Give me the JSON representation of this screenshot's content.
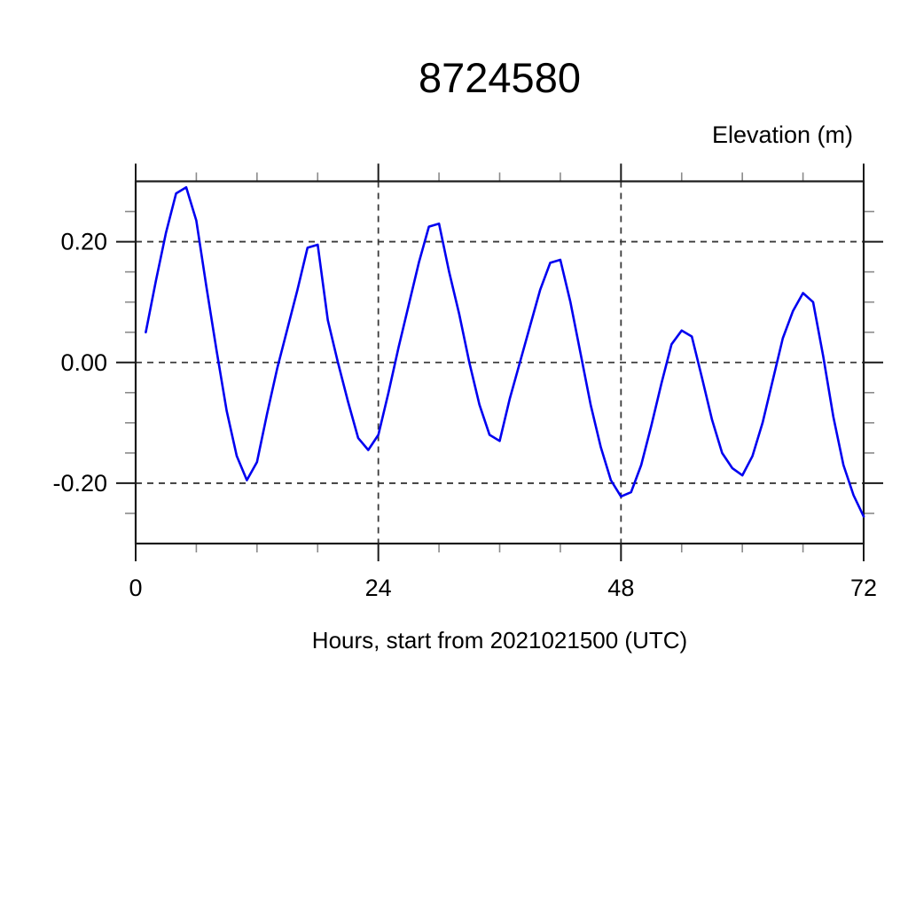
{
  "chart_data": {
    "type": "line",
    "title": "8724580",
    "ylabel": "Elevation (m)",
    "xlabel": "Hours, start from 2021021500 (UTC)",
    "xlim": [
      0,
      72
    ],
    "ylim": [
      -0.3,
      0.3
    ],
    "x_major_ticks": [
      0,
      24,
      48,
      72
    ],
    "x_tick_labels": [
      "0",
      "24",
      "48",
      "72"
    ],
    "x_minor_step": 6,
    "y_major_ticks": [
      0.2,
      0.0,
      -0.2
    ],
    "y_tick_labels": [
      "0.20",
      "0.00",
      "-0.20"
    ],
    "y_minor_step": 0.05,
    "grid": "dashed at major ticks",
    "legend_position": "none",
    "line_color": "#0000f0",
    "frame_color": "#1a1a1a",
    "grid_color": "#3a3a3a",
    "minor_tick_color": "#8a8a8a",
    "series": [
      {
        "name": "elevation",
        "x": [
          1,
          2,
          3,
          4,
          5,
          6,
          7,
          8,
          9,
          10,
          11,
          12,
          13,
          14,
          15,
          16,
          17,
          18,
          19,
          20,
          21,
          22,
          23,
          24,
          25,
          26,
          27,
          28,
          29,
          30,
          31,
          32,
          33,
          34,
          35,
          36,
          37,
          38,
          39,
          40,
          41,
          42,
          43,
          44,
          45,
          46,
          47,
          48,
          49,
          50,
          51,
          52,
          53,
          54,
          55,
          56,
          57,
          58,
          59,
          60,
          61,
          62,
          63,
          64,
          65,
          66,
          67,
          68,
          69,
          70,
          71,
          72
        ],
        "y": [
          0.05,
          0.135,
          0.215,
          0.28,
          0.29,
          0.235,
          0.125,
          0.02,
          -0.08,
          -0.155,
          -0.195,
          -0.165,
          -0.085,
          -0.01,
          0.055,
          0.12,
          0.19,
          0.195,
          0.07,
          0.0,
          -0.065,
          -0.125,
          -0.145,
          -0.12,
          -0.05,
          0.025,
          0.095,
          0.165,
          0.225,
          0.23,
          0.15,
          0.08,
          0.0,
          -0.07,
          -0.12,
          -0.13,
          -0.06,
          0.0,
          0.06,
          0.12,
          0.165,
          0.17,
          0.1,
          0.015,
          -0.07,
          -0.14,
          -0.195,
          -0.222,
          -0.215,
          -0.17,
          -0.105,
          -0.035,
          0.03,
          0.053,
          0.043,
          -0.025,
          -0.095,
          -0.15,
          -0.175,
          -0.187,
          -0.155,
          -0.1,
          -0.03,
          0.04,
          0.085,
          0.115,
          0.1,
          0.01,
          -0.09,
          -0.17,
          -0.22,
          -0.255
        ]
      }
    ]
  }
}
